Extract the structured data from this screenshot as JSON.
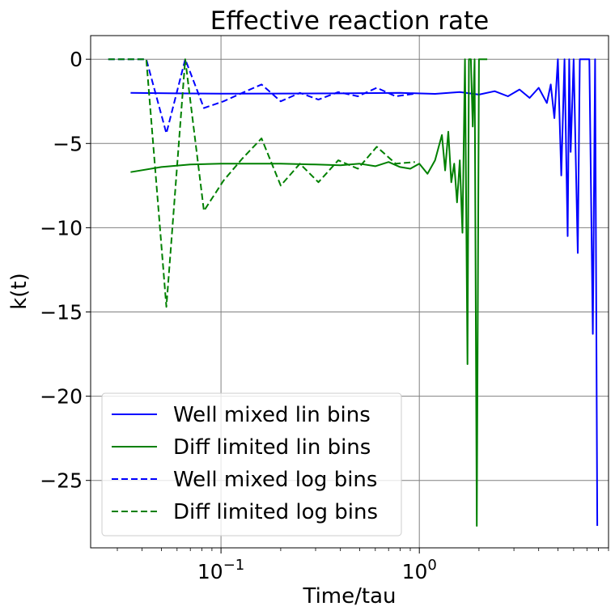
{
  "chart_data": {
    "type": "line",
    "title": "Effective reaction rate",
    "xlabel": "Time/tau",
    "ylabel": "k(t)",
    "xscale": "log",
    "xlim": [
      0.022,
      9.0
    ],
    "ylim": [
      -29.0,
      1.4
    ],
    "grid": true,
    "legend_position": "lower-left",
    "x_ticks": [
      {
        "value": 0.1,
        "base": "10",
        "exp": "−1"
      },
      {
        "value": 1,
        "base": "10",
        "exp": "0"
      }
    ],
    "y_ticks": [
      {
        "value": 0,
        "label": "0"
      },
      {
        "value": -5,
        "label": "−5"
      },
      {
        "value": -10,
        "label": "−10"
      },
      {
        "value": -15,
        "label": "−15"
      },
      {
        "value": -20,
        "label": "−20"
      },
      {
        "value": -25,
        "label": "−25"
      }
    ],
    "series": [
      {
        "name": "Well mixed lin bins",
        "color": "#0000ff",
        "dash": "solid",
        "x": [
          0.035,
          0.06,
          0.1,
          0.2,
          0.4,
          0.8,
          1.2,
          1.6,
          2.0,
          2.4,
          2.8,
          3.2,
          3.6,
          4.0,
          4.4,
          4.6,
          4.8,
          5.0,
          5.2,
          5.4,
          5.6,
          5.7,
          5.8,
          6.0,
          6.3,
          6.45,
          6.6,
          6.9,
          7.2,
          7.5,
          7.7,
          7.9
        ],
        "y": [
          -2.0,
          -2.03,
          -2.05,
          -2.04,
          -2.03,
          -2.0,
          -2.06,
          -1.95,
          -2.1,
          -1.9,
          -2.2,
          -1.8,
          -2.3,
          -1.7,
          -2.6,
          -1.5,
          -3.5,
          0.0,
          -6.9,
          0.0,
          -10.5,
          0.0,
          -5.5,
          0.0,
          -11.5,
          0.0,
          0.0,
          0.0,
          0.0,
          -16.3,
          0.0,
          -27.7
        ]
      },
      {
        "name": "Diff limited lin bins",
        "color": "#008000",
        "dash": "solid",
        "x": [
          0.035,
          0.05,
          0.07,
          0.1,
          0.15,
          0.2,
          0.3,
          0.4,
          0.5,
          0.6,
          0.7,
          0.8,
          0.9,
          1.0,
          1.1,
          1.2,
          1.3,
          1.35,
          1.4,
          1.45,
          1.5,
          1.55,
          1.6,
          1.65,
          1.7,
          1.75,
          1.78,
          1.82,
          1.86,
          1.9,
          1.95,
          2.0,
          2.2
        ],
        "y": [
          -6.7,
          -6.4,
          -6.25,
          -6.2,
          -6.2,
          -6.2,
          -6.25,
          -6.3,
          -6.2,
          -6.35,
          -6.1,
          -6.4,
          -6.5,
          -6.2,
          -6.8,
          -6.0,
          -4.5,
          -6.6,
          -4.3,
          -7.3,
          -6.2,
          -8.5,
          -6.0,
          -10.3,
          0.0,
          -18.1,
          0.0,
          0.0,
          -4.0,
          0.0,
          -27.7,
          0.0,
          0.0
        ]
      },
      {
        "name": "Well mixed log bins",
        "color": "#0000ff",
        "dash": "dashed",
        "x": [
          0.027,
          0.042,
          0.053,
          0.066,
          0.082,
          0.103,
          0.128,
          0.16,
          0.2,
          0.25,
          0.31,
          0.39,
          0.49,
          0.61,
          0.76,
          0.95
        ],
        "y": [
          0.0,
          0.0,
          -4.4,
          0.0,
          -2.9,
          -2.5,
          -2.0,
          -1.5,
          -2.5,
          -2.0,
          -2.4,
          -1.95,
          -2.2,
          -1.7,
          -2.2,
          -2.05
        ]
      },
      {
        "name": "Diff limited log bins",
        "color": "#008000",
        "dash": "dashed",
        "x": [
          0.027,
          0.042,
          0.053,
          0.066,
          0.082,
          0.103,
          0.128,
          0.16,
          0.2,
          0.25,
          0.31,
          0.39,
          0.49,
          0.61,
          0.76,
          0.95
        ],
        "y": [
          0.0,
          0.0,
          -14.7,
          0.0,
          -9.0,
          -7.2,
          -5.9,
          -4.7,
          -7.5,
          -6.2,
          -7.3,
          -6.0,
          -6.5,
          -5.2,
          -6.2,
          -6.1
        ]
      }
    ]
  }
}
